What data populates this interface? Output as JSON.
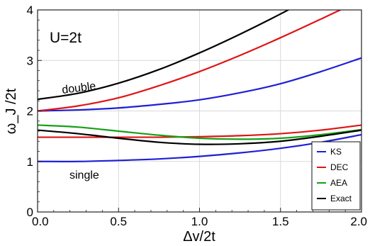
{
  "chart_data": {
    "type": "line",
    "title": "",
    "xlabel": "Δv/2t",
    "ylabel": "ω_J /2t",
    "xlim": [
      0.0,
      2.0
    ],
    "ylim": [
      0,
      4
    ],
    "xticks": [
      "0.0",
      "0.5",
      "1.0",
      "1.5",
      "2.0"
    ],
    "yticks": [
      "0",
      "1",
      "2",
      "3",
      "4"
    ],
    "grid": true,
    "legend_position": "bottom-right",
    "annotations": {
      "param": "U=2t",
      "double": "double",
      "single": "single"
    },
    "x": [
      0.0,
      0.25,
      0.5,
      0.75,
      1.0,
      1.25,
      1.5,
      1.75,
      2.0
    ],
    "series": [
      {
        "name": "KS",
        "color": "#1f1fd6",
        "branch": "double",
        "values": [
          2.0,
          2.02,
          2.06,
          2.13,
          2.22,
          2.36,
          2.54,
          2.78,
          3.05
        ]
      },
      {
        "name": "KS",
        "color": "#1f1fd6",
        "branch": "single",
        "values": [
          1.0,
          1.0,
          1.02,
          1.05,
          1.1,
          1.17,
          1.26,
          1.38,
          1.53
        ]
      },
      {
        "name": "DEC",
        "color": "#e01414",
        "branch": "double",
        "values": [
          2.0,
          2.1,
          2.26,
          2.5,
          2.78,
          3.1,
          3.45,
          3.82,
          4.2
        ]
      },
      {
        "name": "DEC",
        "color": "#e01414",
        "branch": "single",
        "values": [
          1.48,
          1.48,
          1.48,
          1.48,
          1.49,
          1.51,
          1.55,
          1.62,
          1.72
        ]
      },
      {
        "name": "AEA",
        "color": "#16a016",
        "branch": "single",
        "values": [
          1.72,
          1.68,
          1.6,
          1.52,
          1.46,
          1.44,
          1.46,
          1.53,
          1.63
        ]
      },
      {
        "name": "Exact",
        "color": "#000000",
        "branch": "double",
        "values": [
          2.23,
          2.35,
          2.55,
          2.82,
          3.15,
          3.52,
          3.92,
          4.35,
          4.8
        ]
      },
      {
        "name": "Exact",
        "color": "#000000",
        "branch": "single",
        "values": [
          1.62,
          1.55,
          1.46,
          1.38,
          1.34,
          1.35,
          1.4,
          1.5,
          1.62
        ]
      }
    ],
    "legend": [
      {
        "name": "KS",
        "color": "#1f1fd6"
      },
      {
        "name": "DEC",
        "color": "#e01414"
      },
      {
        "name": "AEA",
        "color": "#16a016"
      },
      {
        "name": "Exact",
        "color": "#000000"
      }
    ]
  }
}
